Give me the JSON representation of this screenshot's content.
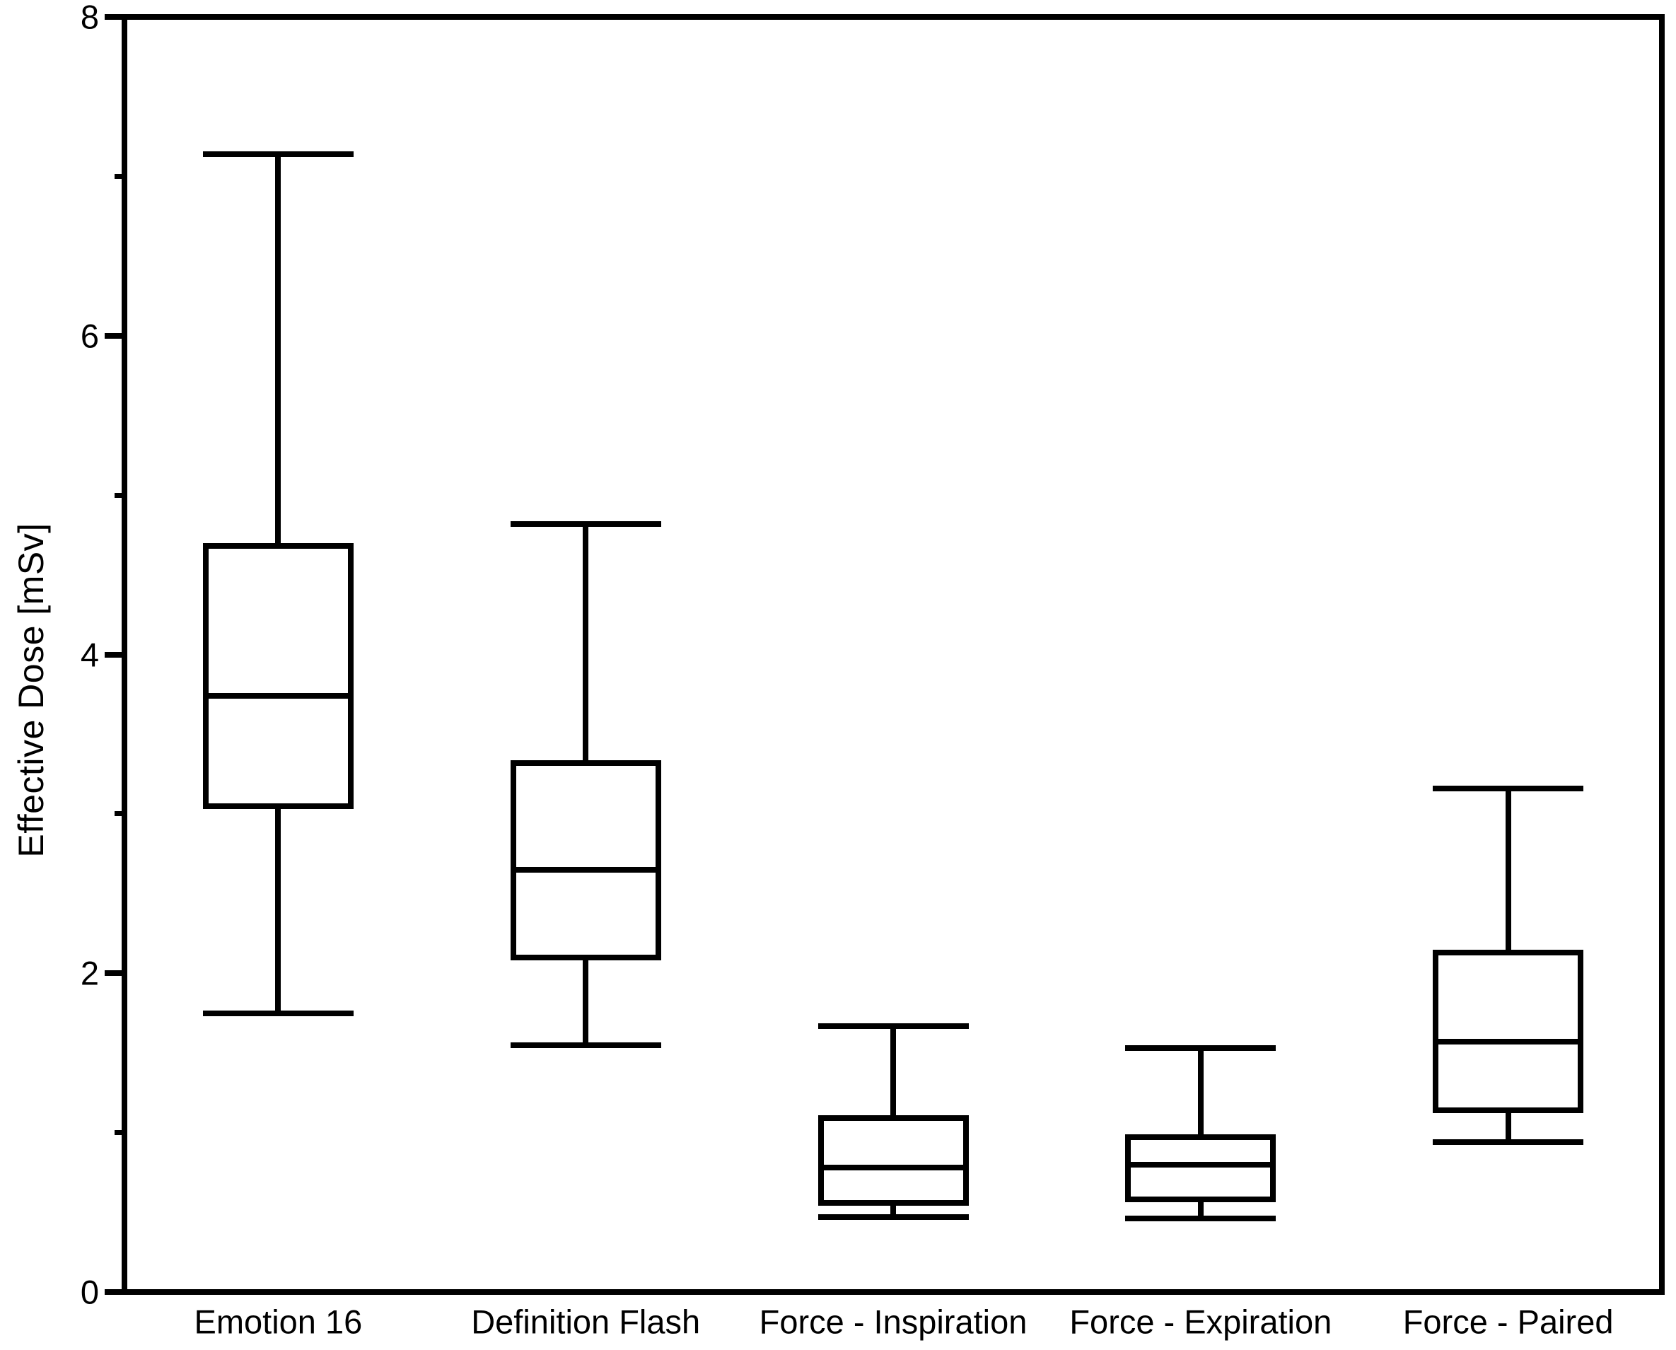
{
  "chart_data": {
    "type": "boxplot",
    "title": "",
    "xlabel": "",
    "ylabel": "Effective Dose [mSv]",
    "ylim": [
      0,
      8
    ],
    "ytick_major": [
      0,
      2,
      4,
      6,
      8
    ],
    "ytick_minor": [
      1,
      3,
      5,
      7
    ],
    "grid": false,
    "legend_position": "none",
    "axis_color": "#000000",
    "box_fill": "#ffffff",
    "background": "#ffffff",
    "categories": [
      "Emotion 16",
      "Definition Flash",
      "Force - Inspiration",
      "Force - Expiration",
      "Force - Paired"
    ],
    "series": [
      {
        "name": "Emotion 16",
        "whisker_low": 1.75,
        "q1": 3.05,
        "median": 3.74,
        "q3": 4.68,
        "whisker_high": 7.14
      },
      {
        "name": "Definition Flash",
        "whisker_low": 1.55,
        "q1": 2.1,
        "median": 2.65,
        "q3": 3.32,
        "whisker_high": 4.82
      },
      {
        "name": "Force - Inspiration",
        "whisker_low": 0.47,
        "q1": 0.56,
        "median": 0.78,
        "q3": 1.09,
        "whisker_high": 1.67
      },
      {
        "name": "Force - Expiration",
        "whisker_low": 0.46,
        "q1": 0.58,
        "median": 0.8,
        "q3": 0.97,
        "whisker_high": 1.53
      },
      {
        "name": "Force - Paired",
        "whisker_low": 0.94,
        "q1": 1.14,
        "median": 1.57,
        "q3": 2.13,
        "whisker_high": 3.16
      }
    ]
  }
}
